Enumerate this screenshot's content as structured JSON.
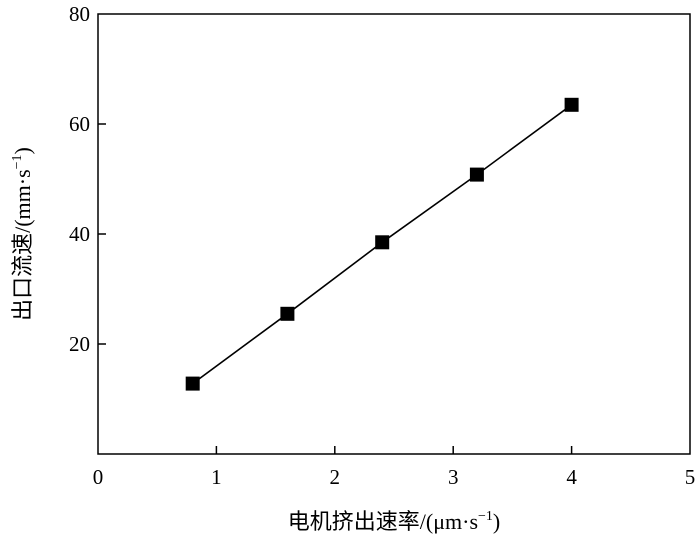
{
  "chart_data": {
    "type": "scatter",
    "title": "",
    "xlabel": "电机挤出速率/(μm·s⁻¹)",
    "ylabel": "出口流速/(mm·s⁻¹)",
    "xlim": [
      0,
      5
    ],
    "ylim": [
      0,
      80
    ],
    "x_ticks": [
      0,
      1,
      2,
      3,
      4,
      5
    ],
    "y_ticks": [
      20,
      40,
      60,
      80
    ],
    "grid": false,
    "series": [
      {
        "x": [
          0.8,
          1.6,
          2.4,
          3.2,
          4.0
        ],
        "y": [
          12.8,
          25.5,
          38.5,
          50.8,
          63.5
        ],
        "marker": "square",
        "line": true,
        "color": "#000000"
      }
    ]
  }
}
